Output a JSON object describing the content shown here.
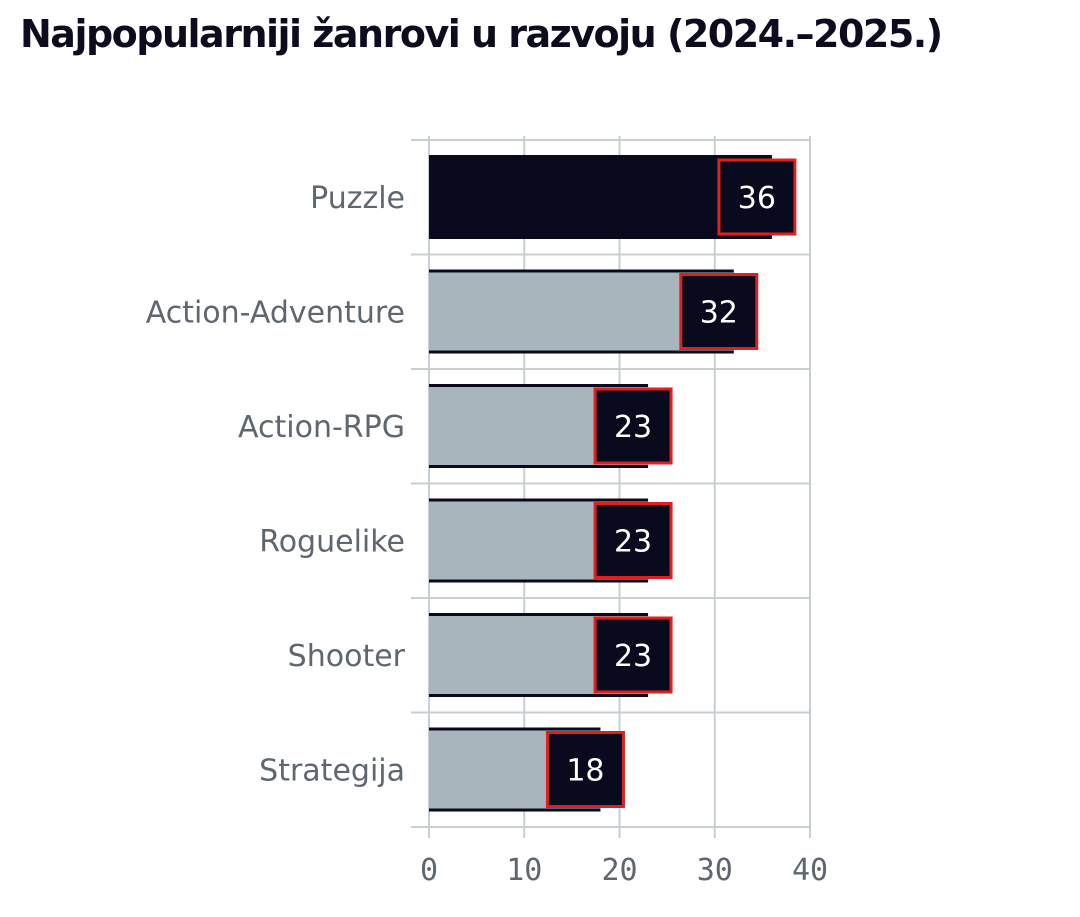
{
  "title": "Najpopularniji žanrovi u razvoju (2024.–2025.)",
  "colors": {
    "highlight_bar": "#0a0a1f",
    "bar": "#a8b5bc",
    "label_box": "#0a0a1f",
    "label_border": "#e02020",
    "grid": "#c7cfd4",
    "text": "#5e6670"
  },
  "chart_data": {
    "type": "bar",
    "orientation": "horizontal",
    "categories": [
      "Puzzle",
      "Action-Adventure",
      "Action-RPG",
      "Roguelike",
      "Shooter",
      "Strategija"
    ],
    "values": [
      36,
      32,
      23,
      23,
      23,
      18
    ],
    "highlight": "Puzzle",
    "xlim": [
      0,
      40
    ],
    "xticks": [
      "0",
      "10",
      "20",
      "30",
      "40"
    ],
    "title": "Najpopularniji žanrovi u razvoju (2024.–2025.)",
    "xlabel": "",
    "ylabel": "",
    "grid": true,
    "legend": "none"
  }
}
